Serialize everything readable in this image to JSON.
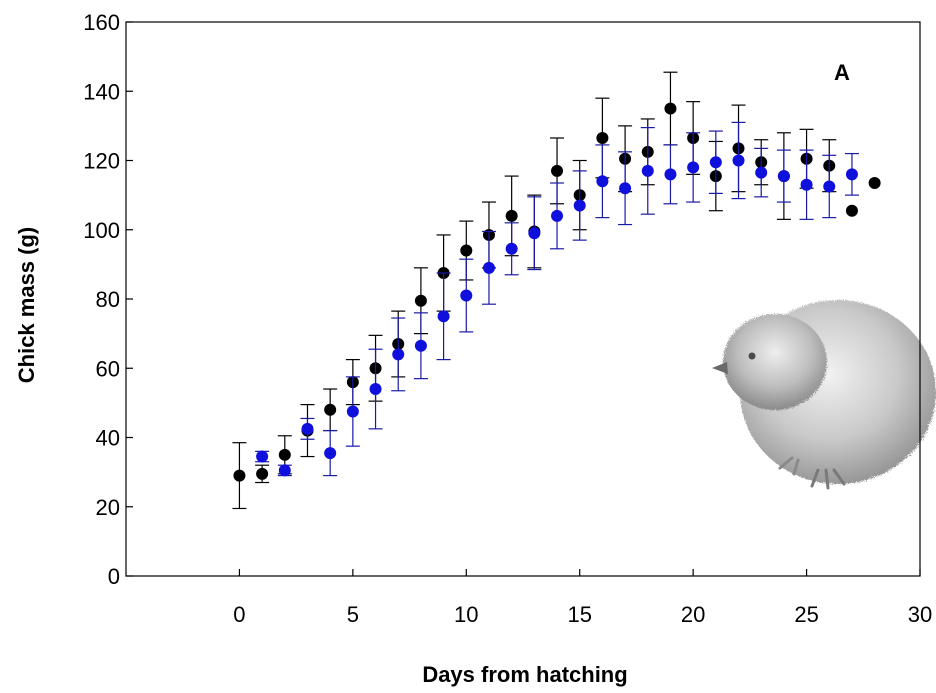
{
  "chart_data": {
    "type": "scatter",
    "title": "",
    "panel_label": "A",
    "xlabel": "Days from hatching",
    "ylabel": "Chick mass (g)",
    "xlim": [
      -5,
      30
    ],
    "ylim": [
      0,
      160
    ],
    "xticks": [
      0,
      5,
      10,
      15,
      20,
      25,
      30
    ],
    "yticks": [
      0,
      20,
      40,
      60,
      80,
      100,
      120,
      140,
      160
    ],
    "grid": false,
    "legend": "none",
    "series": [
      {
        "color": "#000000",
        "error_bar_color": "#000000",
        "points": [
          {
            "x": 0,
            "y": 29,
            "err": 9.5
          },
          {
            "x": 1,
            "y": 29.5,
            "err": 2.5
          },
          {
            "x": 2,
            "y": 35,
            "err": 5.5
          },
          {
            "x": 3,
            "y": 42,
            "err": 7.5
          },
          {
            "x": 4,
            "y": 48,
            "err": 6
          },
          {
            "x": 5,
            "y": 56,
            "err": 6.5
          },
          {
            "x": 6,
            "y": 60,
            "err": 9.5
          },
          {
            "x": 7,
            "y": 67,
            "err": 9.5
          },
          {
            "x": 8,
            "y": 79.5,
            "err": 9.5
          },
          {
            "x": 9,
            "y": 87.5,
            "err": 11
          },
          {
            "x": 10,
            "y": 94,
            "err": 8.5
          },
          {
            "x": 11,
            "y": 98.5,
            "err": 9.5
          },
          {
            "x": 12,
            "y": 104,
            "err": 11.5
          },
          {
            "x": 13,
            "y": 99.5,
            "err": 10.5
          },
          {
            "x": 14,
            "y": 117,
            "err": 9.5
          },
          {
            "x": 15,
            "y": 110,
            "err": 10
          },
          {
            "x": 16,
            "y": 126.5,
            "err": 11.5
          },
          {
            "x": 17,
            "y": 120.5,
            "err": 9.5
          },
          {
            "x": 18,
            "y": 122.5,
            "err": 9.5
          },
          {
            "x": 19,
            "y": 135,
            "err": 10.5
          },
          {
            "x": 20,
            "y": 126.5,
            "err": 10.5
          },
          {
            "x": 21,
            "y": 115.5,
            "err": 10
          },
          {
            "x": 22,
            "y": 123.5,
            "err": 12.5
          },
          {
            "x": 23,
            "y": 119.5,
            "err": 6.5
          },
          {
            "x": 24,
            "y": 115.5,
            "err": 12.5
          },
          {
            "x": 25,
            "y": 120.5,
            "err": 8.5
          },
          {
            "x": 26,
            "y": 118.5,
            "err": 7.5
          },
          {
            "x": 27,
            "y": 105.5,
            "err": null
          },
          {
            "x": 28,
            "y": 113.5,
            "err": null
          }
        ]
      },
      {
        "color": "#1010dd",
        "error_bar_color": "#1a1aa8",
        "points": [
          {
            "x": 1,
            "y": 34.5,
            "err": 1.5
          },
          {
            "x": 2,
            "y": 30.5,
            "err": 1.5
          },
          {
            "x": 3,
            "y": 42.5,
            "err": 3
          },
          {
            "x": 4,
            "y": 35.5,
            "err": 6.5
          },
          {
            "x": 5,
            "y": 47.5,
            "err": 10
          },
          {
            "x": 6,
            "y": 54,
            "err": 11.5
          },
          {
            "x": 7,
            "y": 64,
            "err": 10.5
          },
          {
            "x": 8,
            "y": 66.5,
            "err": 9.5
          },
          {
            "x": 9,
            "y": 75,
            "err": 12.5
          },
          {
            "x": 10,
            "y": 81,
            "err": 10.5
          },
          {
            "x": 11,
            "y": 89,
            "err": 10.5
          },
          {
            "x": 12,
            "y": 94.5,
            "err": 7.5
          },
          {
            "x": 13,
            "y": 99,
            "err": 10.5
          },
          {
            "x": 14,
            "y": 104,
            "err": 9.5
          },
          {
            "x": 15,
            "y": 107,
            "err": 10
          },
          {
            "x": 16,
            "y": 114,
            "err": 10.5
          },
          {
            "x": 17,
            "y": 112,
            "err": 10.5
          },
          {
            "x": 18,
            "y": 117,
            "err": 12.5
          },
          {
            "x": 19,
            "y": 116,
            "err": 8.5
          },
          {
            "x": 20,
            "y": 118,
            "err": 10
          },
          {
            "x": 21,
            "y": 119.5,
            "err": 9
          },
          {
            "x": 22,
            "y": 120,
            "err": 11
          },
          {
            "x": 23,
            "y": 116.5,
            "err": 7
          },
          {
            "x": 24,
            "y": 115.5,
            "err": 7.5
          },
          {
            "x": 25,
            "y": 113,
            "err": 10
          },
          {
            "x": 26,
            "y": 112.5,
            "err": 9
          },
          {
            "x": 27,
            "y": 116,
            "err": 6
          }
        ]
      }
    ]
  },
  "inset_image": {
    "subject": "illustration of a downy chick",
    "palette": "grayscale"
  }
}
